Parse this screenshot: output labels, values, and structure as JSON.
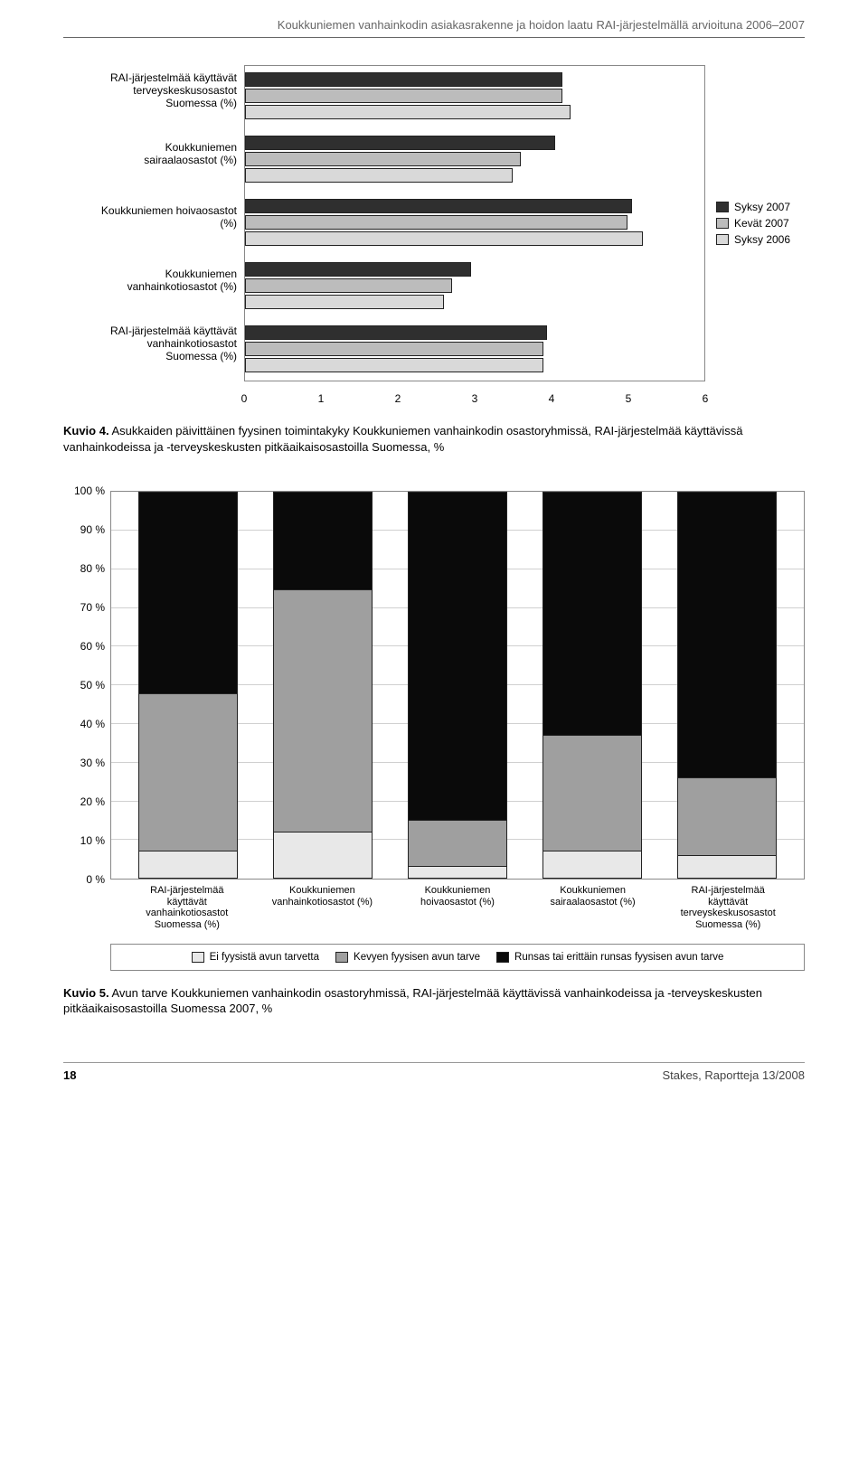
{
  "header_title": "Koukkuniemen vanhainkodin asiakasrakenne ja hoidon laatu RAI-järjestelmällä arvioituna 2006–2007",
  "chart1": {
    "type": "grouped-horizontal-bar",
    "xmax": 6,
    "background_color": "#ffffff",
    "border_color": "#888888",
    "xticks": [
      0,
      1,
      2,
      3,
      4,
      5,
      6
    ],
    "colors": {
      "syksy2007": "#2f2f2f",
      "kevat2007": "#bcbcbc",
      "syksy2006": "#d9d9d9"
    },
    "legend": [
      {
        "key": "syksy2007",
        "label": "Syksy 2007"
      },
      {
        "key": "kevat2007",
        "label": "Kevät 2007"
      },
      {
        "key": "syksy2006",
        "label": "Syksy 2006"
      }
    ],
    "groups": [
      {
        "label_lines": [
          "RAI-järjestelmää käyttävät",
          "terveyskeskusosastot",
          "Suomessa (%)"
        ],
        "values": {
          "syksy2007": 4.15,
          "kevat2007": 4.15,
          "syksy2006": 4.25
        }
      },
      {
        "label_lines": [
          "Koukkuniemen",
          "sairaalaosastot (%)"
        ],
        "values": {
          "syksy2007": 4.05,
          "kevat2007": 3.6,
          "syksy2006": 3.5
        }
      },
      {
        "label_lines": [
          "Koukkuniemen hoivaosastot",
          "(%)"
        ],
        "values": {
          "syksy2007": 5.05,
          "kevat2007": 5.0,
          "syksy2006": 5.2
        }
      },
      {
        "label_lines": [
          "Koukkuniemen",
          "vanhainkotiosastot (%)"
        ],
        "values": {
          "syksy2007": 2.95,
          "kevat2007": 2.7,
          "syksy2006": 2.6
        }
      },
      {
        "label_lines": [
          "RAI-järjestelmää käyttävät",
          "vanhainkotiosastot",
          "Suomessa (%)"
        ],
        "values": {
          "syksy2007": 3.95,
          "kevat2007": 3.9,
          "syksy2006": 3.9
        }
      }
    ]
  },
  "caption1_bold": "Kuvio 4.",
  "caption1_rest": " Asukkaiden päivittäinen fyysinen toimintakyky Koukkuniemen vanhainkodin osastoryhmissä, RAI-järjestelmää käyttävissä vanhainkodeissa ja -terveyskeskusten pitkäaikaisosastoilla Suomessa, %",
  "chart2": {
    "type": "stacked-100-column",
    "yticks": [
      "0 %",
      "10 %",
      "20 %",
      "30 %",
      "40 %",
      "50 %",
      "60 %",
      "70 %",
      "80 %",
      "90 %",
      "100 %"
    ],
    "colors": {
      "ei": "#e8e8e8",
      "kevyt": "#9f9f9f",
      "runsas": "#0a0a0a"
    },
    "legend": [
      {
        "key": "ei",
        "label": "Ei fyysistä avun tarvetta"
      },
      {
        "key": "kevyt",
        "label": "Kevyen fyysisen avun tarve"
      },
      {
        "key": "runsas",
        "label": "Runsas tai erittäin runsas fyysisen avun tarve"
      }
    ],
    "columns": [
      {
        "label_lines": [
          "RAI-järjestelmää",
          "käyttävät",
          "vanhainkotiosastot",
          "Suomessa (%)"
        ],
        "segments": {
          "ei": 7,
          "kevyt": 41,
          "runsas": 52
        }
      },
      {
        "label_lines": [
          "Koukkuniemen",
          "vanhainkotiosastot (%)"
        ],
        "segments": {
          "ei": 12,
          "kevyt": 63,
          "runsas": 25
        }
      },
      {
        "label_lines": [
          "Koukkuniemen",
          "hoivaosastot (%)"
        ],
        "segments": {
          "ei": 3,
          "kevyt": 12,
          "runsas": 85
        }
      },
      {
        "label_lines": [
          "Koukkuniemen",
          "sairaalaosastot (%)"
        ],
        "segments": {
          "ei": 7,
          "kevyt": 30,
          "runsas": 63
        }
      },
      {
        "label_lines": [
          "RAI-järjestelmää",
          "käyttävät",
          "terveyskeskusosastot",
          "Suomessa (%)"
        ],
        "segments": {
          "ei": 6,
          "kevyt": 20,
          "runsas": 74
        }
      }
    ]
  },
  "caption2_bold": "Kuvio 5.",
  "caption2_rest": " Avun tarve Koukkuniemen vanhainkodin osastoryhmissä, RAI-järjestelmää käyttävissä vanhainkodeissa ja -terveyskeskusten pitkäaikaisosastoilla Suomessa 2007, %",
  "footer_page": "18",
  "footer_right": "Stakes, Raportteja 13/2008"
}
